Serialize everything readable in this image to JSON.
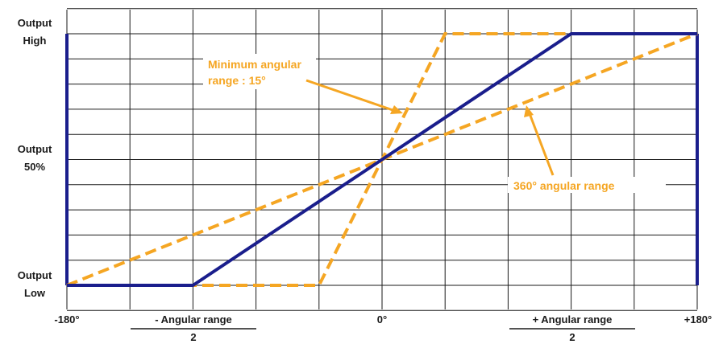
{
  "chart_data": {
    "type": "line",
    "x_ticks": [
      {
        "value": -180,
        "label": "-180°"
      },
      {
        "value": 0,
        "label": "0°"
      },
      {
        "value": 180,
        "label": "+180°"
      }
    ],
    "y_ticks": [
      {
        "value": 0,
        "line1": "Output",
        "line2": "Low"
      },
      {
        "value": 50,
        "line1": "Output",
        "line2": "50%"
      },
      {
        "value": 100,
        "line1": "Output",
        "line2": "High"
      }
    ],
    "xlim": [
      -180,
      180
    ],
    "ylim": [
      0,
      100
    ],
    "grid": true,
    "series": [
      {
        "style": "solid",
        "color": "#1a1e8c",
        "points": [
          [
            -180,
            0
          ],
          [
            -108,
            0
          ],
          [
            108,
            100
          ],
          [
            180,
            100
          ]
        ]
      },
      {
        "style": "dashed",
        "color": "#f5a623",
        "points": [
          [
            -180,
            0
          ],
          [
            180,
            100
          ]
        ]
      },
      {
        "style": "dashed",
        "color": "#f5a623",
        "points": [
          [
            -180,
            0
          ],
          [
            -36,
            0
          ],
          [
            36,
            100
          ],
          [
            180,
            100
          ]
        ]
      }
    ],
    "annotations": [
      {
        "line1": "Minimum angular",
        "line2": "range : 15°"
      },
      {
        "line1": "360° angular range",
        "line2": ""
      }
    ],
    "range_labels": [
      {
        "line1": "- Angular range",
        "line2": "2"
      },
      {
        "line1": "+ Angular range",
        "line2": "2"
      }
    ]
  }
}
